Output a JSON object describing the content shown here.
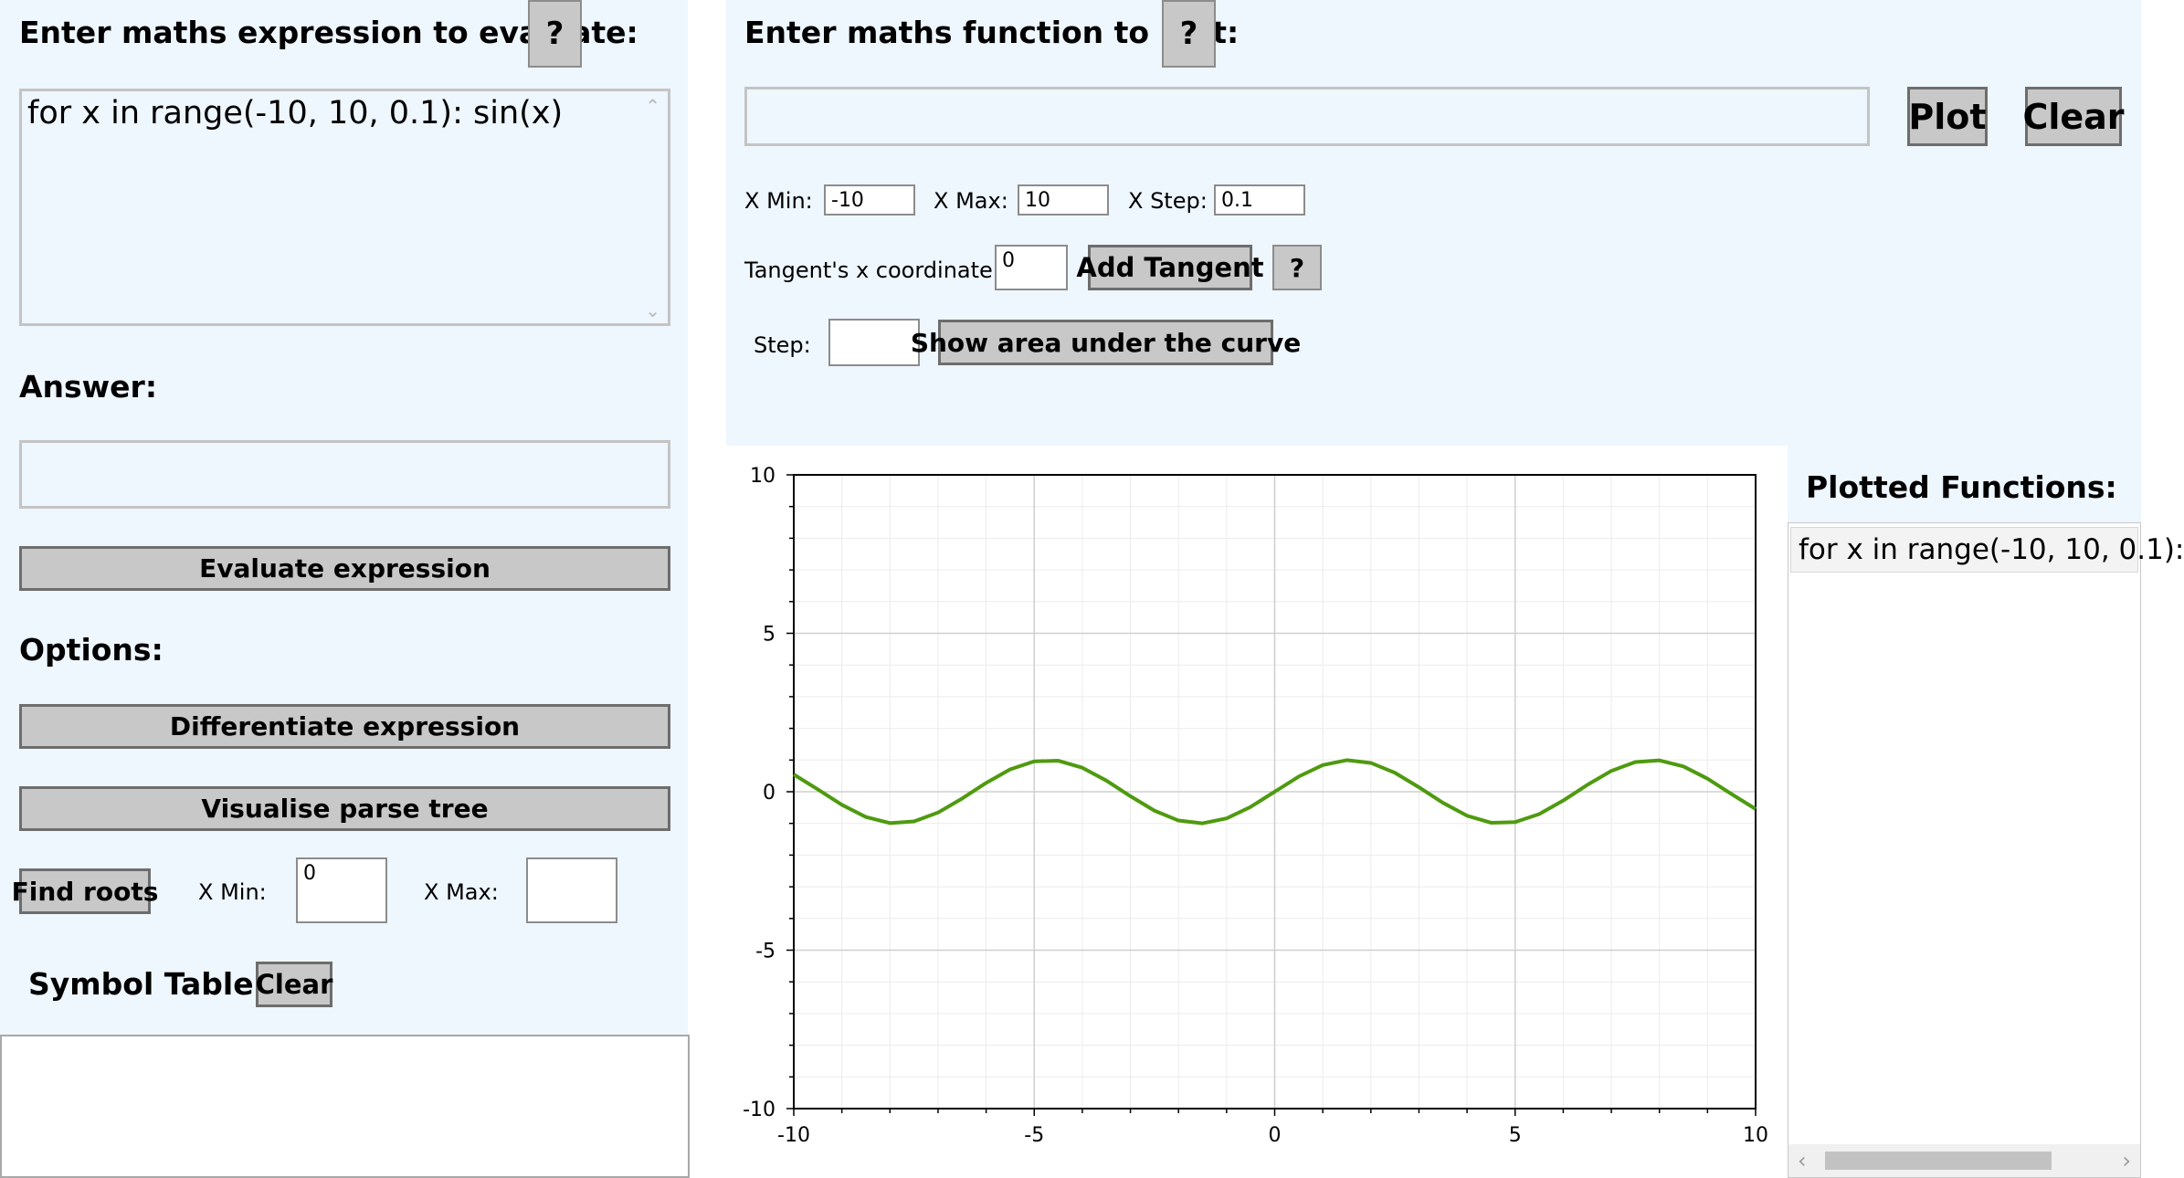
{
  "left_panel": {
    "expr_heading": "Enter maths expression to evaluate:",
    "expr_help": "?",
    "expr_value": "for x in range(-10, 10, 0.1): sin(x)",
    "answer_heading": "Answer:",
    "answer_value": "",
    "evaluate_label": "Evaluate expression",
    "options_heading": "Options:",
    "differentiate_label": "Differentiate expression",
    "parse_tree_label": "Visualise parse tree",
    "find_roots_label": "Find roots",
    "roots_xmin_label": "X Min:",
    "roots_xmin_value": "0",
    "roots_xmax_label": "X Max:",
    "roots_xmax_value": "",
    "symbol_table_heading": "Symbol Table:",
    "symbol_table_clear_label": "Clear"
  },
  "plot_panel": {
    "func_heading": "Enter maths function to plot:",
    "func_help": "?",
    "func_value": "",
    "plot_label": "Plot",
    "clear_label": "Clear",
    "xmin_label": "X Min:",
    "xmin_value": "-10",
    "xmax_label": "X Max:",
    "xmax_value": "10",
    "xstep_label": "X Step:",
    "xstep_value": "0.1",
    "tangent_label": "Tangent's x coordinate:",
    "tangent_value": "0",
    "add_tangent_label": "Add Tangent",
    "tangent_help": "?",
    "step_label": "Step:",
    "step_value": "",
    "area_label": "Show area under the curve"
  },
  "plotted_functions": {
    "heading": "Plotted Functions:",
    "items": [
      "for x in range(-10, 10, 0.1):"
    ]
  },
  "chart_data": {
    "type": "line",
    "title": "",
    "xlabel": "",
    "ylabel": "",
    "xlim": [
      -10,
      10
    ],
    "ylim": [
      -10,
      10
    ],
    "x_ticks": [
      "-10",
      "-5",
      "0",
      "5",
      "10"
    ],
    "y_ticks": [
      "10",
      "5",
      "0",
      "-5",
      "-10"
    ],
    "grid": true,
    "series": [
      {
        "function": "sin(x)",
        "color": "#4f9a10",
        "x": [
          -10,
          -9.5,
          -9,
          -8.5,
          -8,
          -7.5,
          -7,
          -6.5,
          -6,
          -5.5,
          -5,
          -4.5,
          -4,
          -3.5,
          -3,
          -2.5,
          -2,
          -1.5,
          -1,
          -0.5,
          0,
          0.5,
          1,
          1.5,
          2,
          2.5,
          3,
          3.5,
          4,
          4.5,
          5,
          5.5,
          6,
          6.5,
          7,
          7.5,
          8,
          8.5,
          9,
          9.5,
          10
        ],
        "y": [
          0.544,
          0.075,
          -0.412,
          -0.798,
          -0.989,
          -0.938,
          -0.657,
          -0.215,
          0.279,
          0.706,
          0.959,
          0.978,
          0.757,
          0.351,
          -0.141,
          -0.598,
          -0.909,
          -0.997,
          -0.841,
          -0.479,
          0,
          0.479,
          0.841,
          0.997,
          0.909,
          0.598,
          0.141,
          -0.351,
          -0.757,
          -0.978,
          -0.959,
          -0.706,
          -0.279,
          0.215,
          0.657,
          0.938,
          0.989,
          0.798,
          0.412,
          -0.075,
          -0.544
        ]
      }
    ]
  }
}
